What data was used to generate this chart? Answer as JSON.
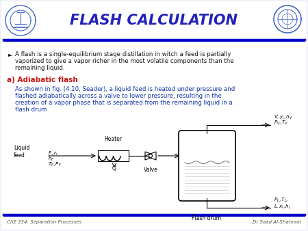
{
  "title": "FLASH CALCULATION",
  "title_color": "#2222bb",
  "title_fontsize": 15,
  "bg_color": "#f0f0f8",
  "header_line_color": "#0000cc",
  "bullet_text_line1": "A flash is a single-equilibrium stage distillation in witch a feed is partially",
  "bullet_text_line2": "vaporized to give a vapor richer in the most volatile components than the",
  "bullet_text_line3": "remaining liquid.",
  "section_a_label": "a) Adiabatic flash",
  "section_a_color": "#cc1111",
  "body_line1": "As shown in fig. (4.10, Seader), a liquid feed is heated under pressure and",
  "body_line2": "flashed adiabatically across a valve to lower pressure, resulting in the",
  "body_line3": "creation of a vapor phase that is separated from the remaining liquid in a",
  "body_line4": "flash drum",
  "body_text_color": "#1133aa",
  "footer_left": "ChE 334: Separation Processes",
  "footer_right": "Dr Saad Al-Shahrani",
  "footer_color": "#555555",
  "text_color_black": "#111111"
}
